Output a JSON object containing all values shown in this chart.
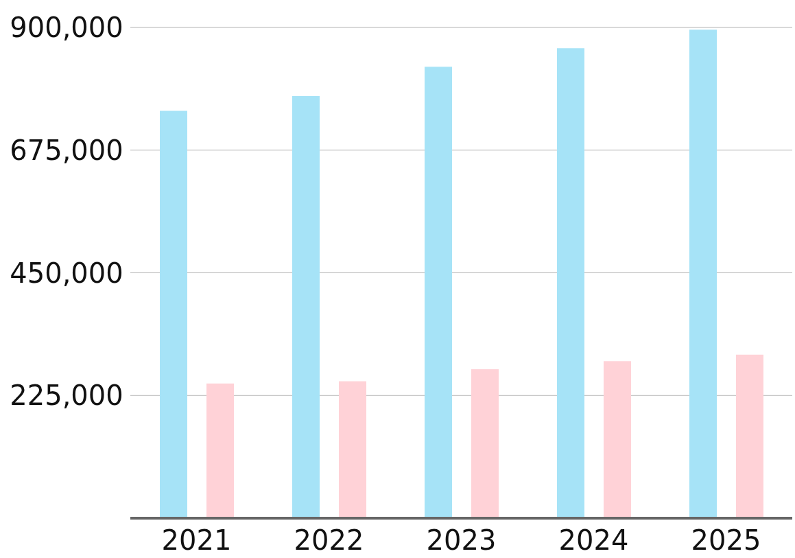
{
  "chart_data": {
    "type": "bar",
    "categories": [
      "2021",
      "2022",
      "2023",
      "2024",
      "2025"
    ],
    "series": [
      {
        "color": "#a6e3f7",
        "values": [
          747000,
          774000,
          828000,
          862000,
          896000
        ]
      },
      {
        "color": "#ffd2d7",
        "values": [
          247000,
          251000,
          273000,
          288000,
          300000
        ]
      }
    ],
    "ylim": [
      0,
      900000
    ],
    "yticks": [
      {
        "value": 0,
        "label": null
      },
      {
        "value": 225000,
        "label": "225,000"
      },
      {
        "value": 450000,
        "label": "450,000"
      },
      {
        "value": 675000,
        "label": "675,000"
      },
      {
        "value": 900000,
        "label": "900,000"
      }
    ],
    "grid": "y"
  }
}
